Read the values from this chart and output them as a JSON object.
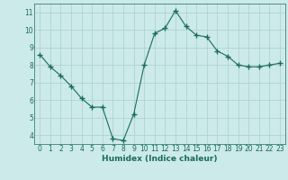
{
  "x": [
    0,
    1,
    2,
    3,
    4,
    5,
    6,
    7,
    8,
    9,
    10,
    11,
    12,
    13,
    14,
    15,
    16,
    17,
    18,
    19,
    20,
    21,
    22,
    23
  ],
  "y": [
    8.6,
    7.9,
    7.4,
    6.8,
    6.1,
    5.6,
    5.6,
    3.8,
    3.7,
    5.2,
    8.0,
    9.8,
    10.1,
    11.1,
    10.2,
    9.7,
    9.6,
    8.8,
    8.5,
    8.0,
    7.9,
    7.9,
    8.0,
    8.1
  ],
  "line_color": "#1a6b5a",
  "marker": "+",
  "marker_size": 4,
  "bg_color": "#cceaea",
  "grid_color": "#aacece",
  "xlabel": "Humidex (Indice chaleur)",
  "xlim": [
    -0.5,
    23.5
  ],
  "ylim": [
    3.5,
    11.5
  ],
  "yticks": [
    4,
    5,
    6,
    7,
    8,
    9,
    10,
    11
  ],
  "xticks": [
    0,
    1,
    2,
    3,
    4,
    5,
    6,
    7,
    8,
    9,
    10,
    11,
    12,
    13,
    14,
    15,
    16,
    17,
    18,
    19,
    20,
    21,
    22,
    23
  ],
  "tick_fontsize": 5.5,
  "label_fontsize": 6.5
}
